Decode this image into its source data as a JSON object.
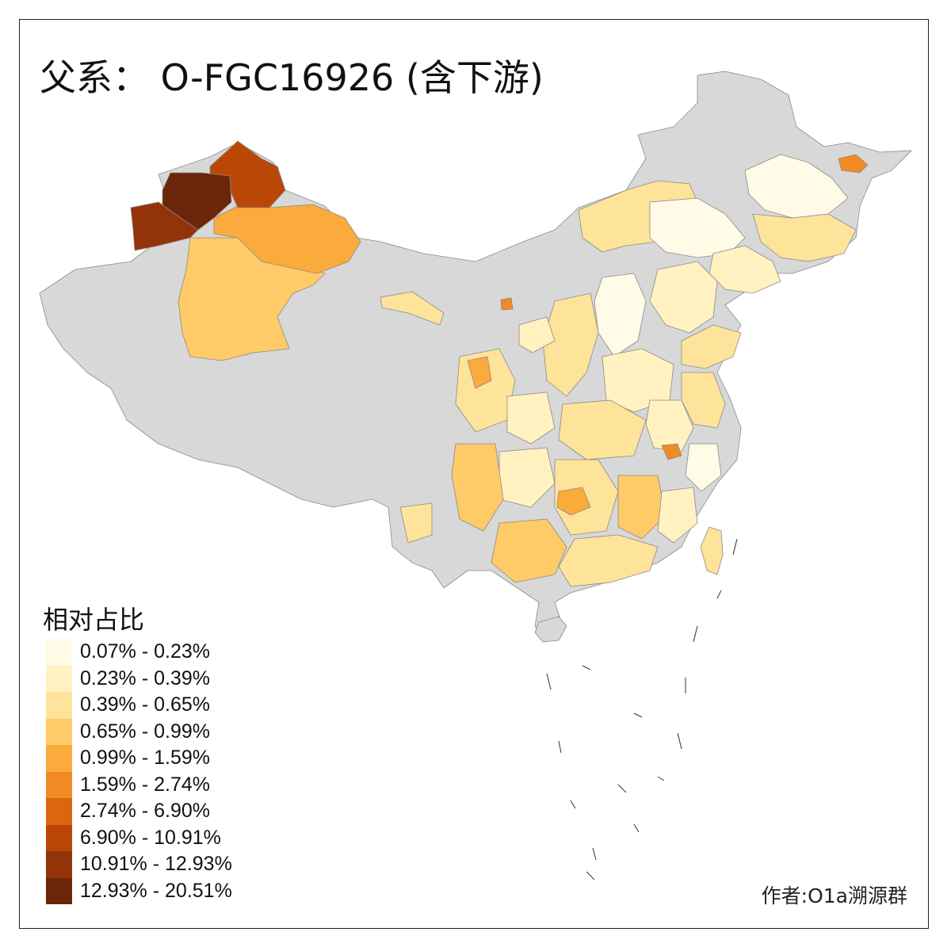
{
  "title": "父系： O-FGC16926 (含下游)",
  "legend": {
    "title": "相对占比",
    "classes": [
      {
        "label": "0.07% - 0.23%",
        "color": "#fffbe6"
      },
      {
        "label": "0.23% - 0.39%",
        "color": "#fff2c0"
      },
      {
        "label": "0.39% - 0.65%",
        "color": "#fee39a"
      },
      {
        "label": "0.65% - 0.99%",
        "color": "#fecb68"
      },
      {
        "label": "0.99% - 1.59%",
        "color": "#fbaa3c"
      },
      {
        "label": "1.59% - 2.74%",
        "color": "#f08a24"
      },
      {
        "label": "2.74% - 6.90%",
        "color": "#dc6510"
      },
      {
        "label": "6.90% - 10.91%",
        "color": "#bb4707"
      },
      {
        "label": "10.91% - 12.93%",
        "color": "#93330a"
      },
      {
        "label": "12.93% - 20.51%",
        "color": "#6b2508"
      }
    ]
  },
  "no_data_color": "#d8d8d8",
  "credit": "作者:O1a溯源群"
}
